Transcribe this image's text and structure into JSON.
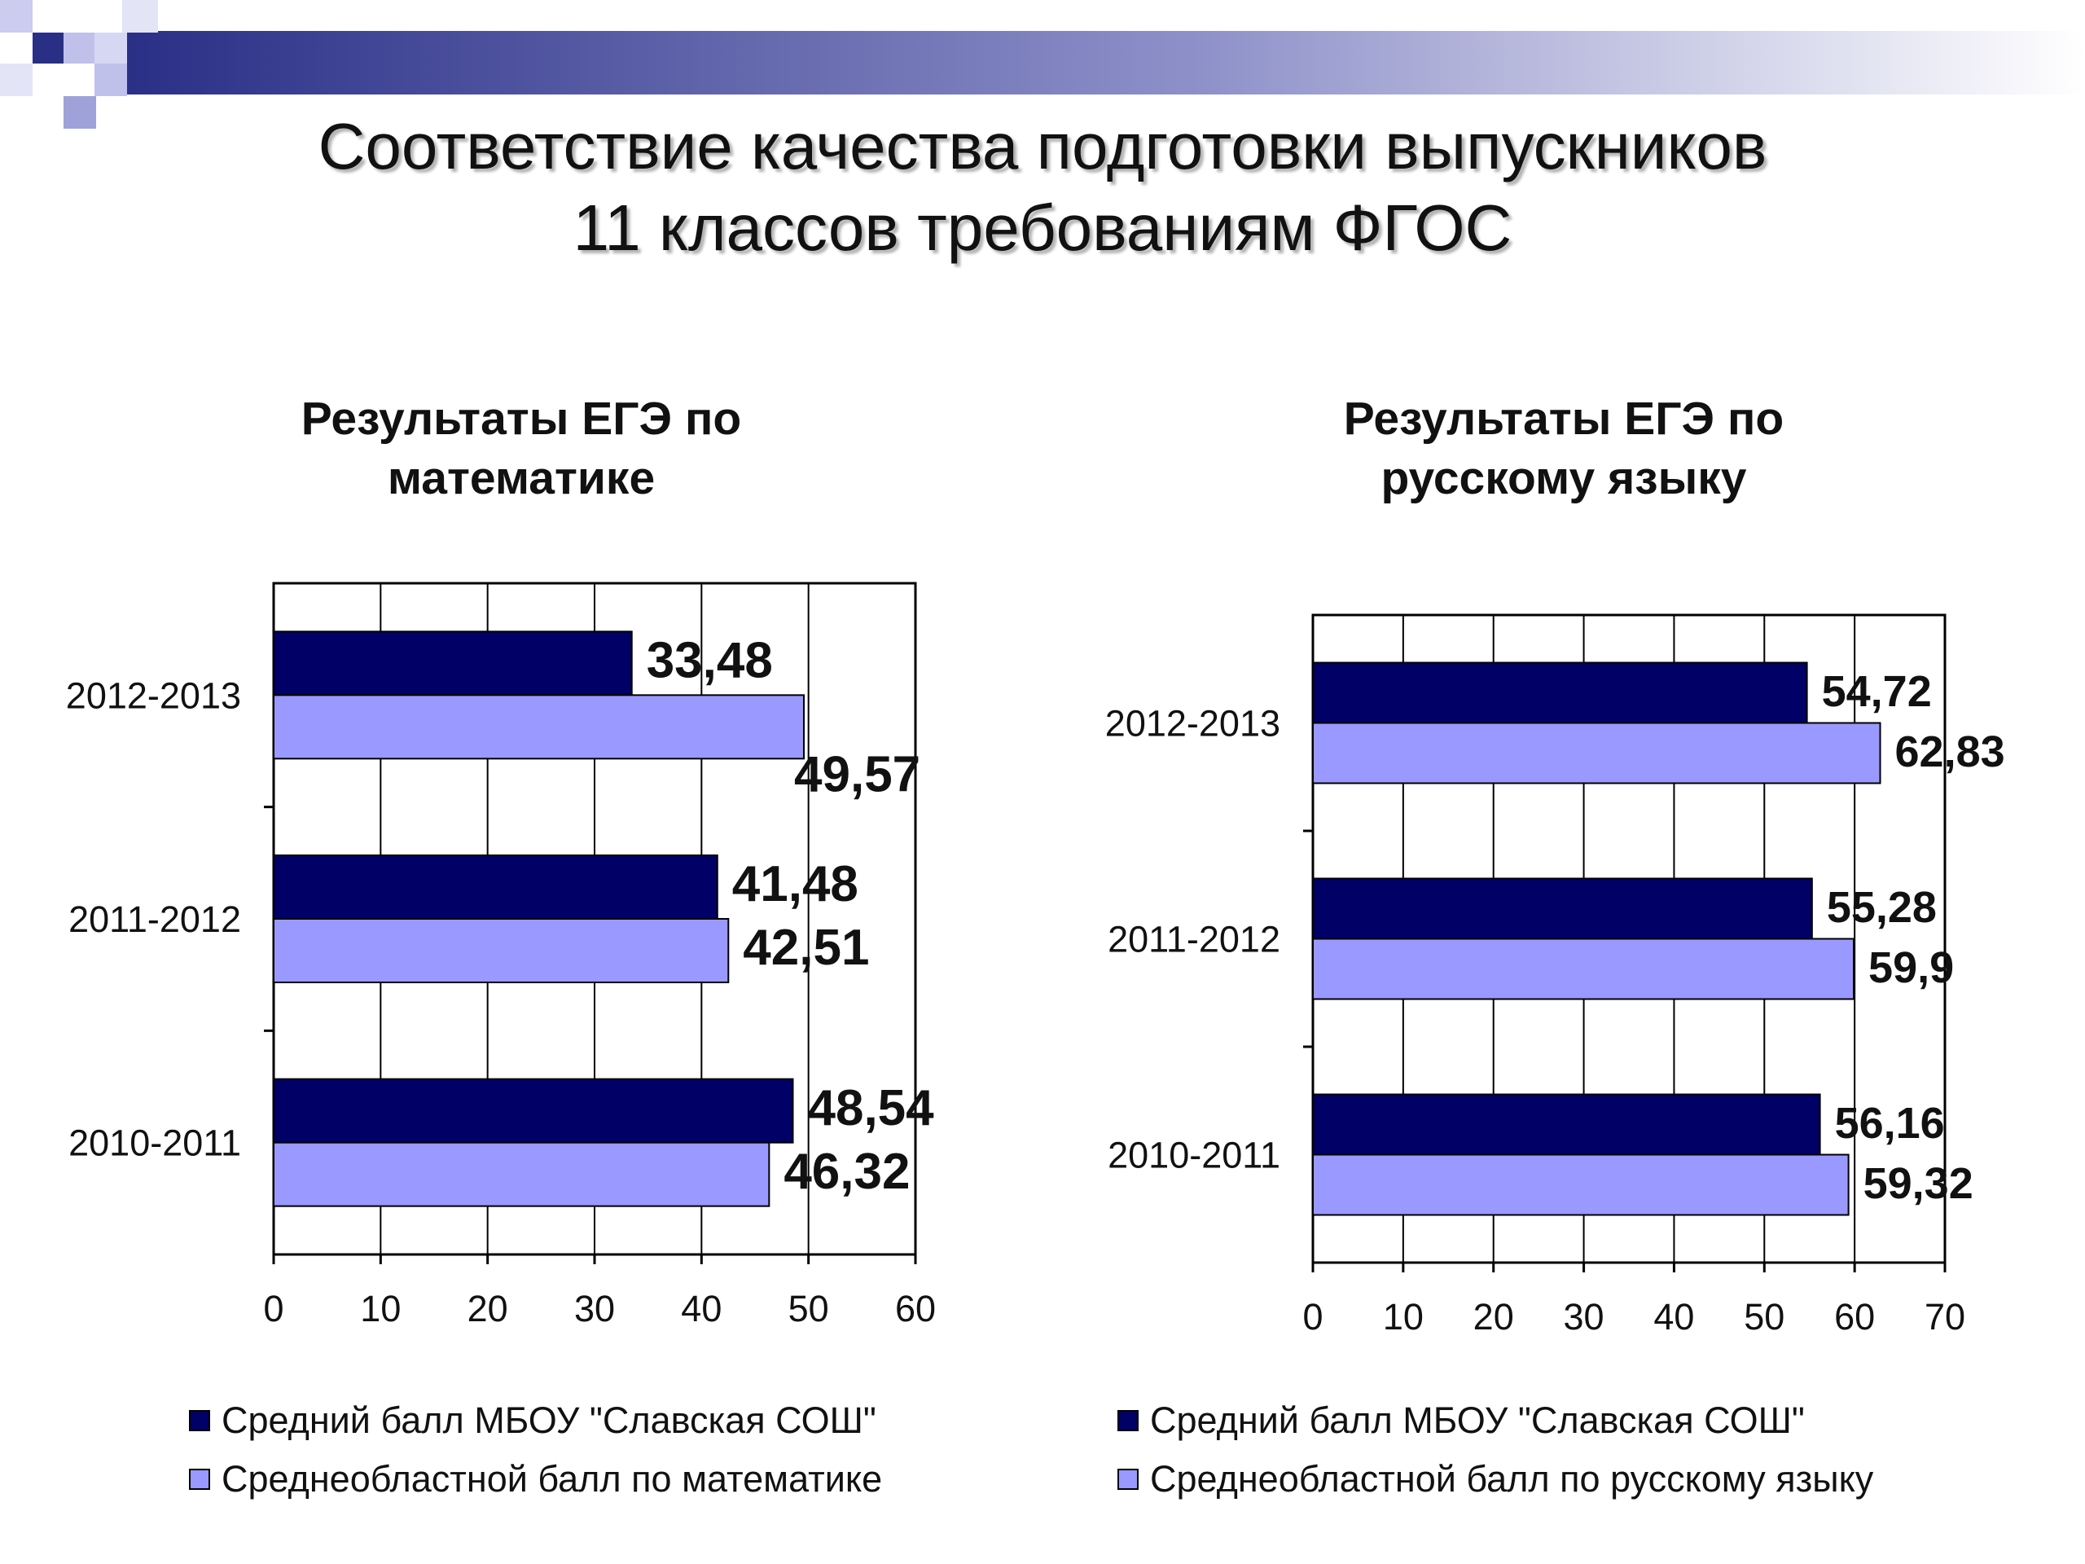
{
  "slide": {
    "title_line1": "Соответствие качества подготовки выпускников",
    "title_line2": "11 классов требованиям ФГОС"
  },
  "colors": {
    "series_school": "#000066",
    "series_region": "#9999ff",
    "banner_dark": "#2a2f86",
    "banner_light": "#c9cbee"
  },
  "chart_data": [
    {
      "type": "bar",
      "orientation": "horizontal",
      "title": "Результаты ЕГЭ по математике",
      "title_lines": [
        "Результаты ЕГЭ по",
        "математике"
      ],
      "categories": [
        "2012-2013",
        "2011-2012",
        "2010-2011"
      ],
      "series": [
        {
          "name": "Средний балл МБОУ \"Славская СОШ\"",
          "values": [
            33.48,
            41.48,
            48.54
          ],
          "labels": [
            "33,48",
            "41,48",
            "48,54"
          ]
        },
        {
          "name": "Среднеобластной балл по математике",
          "values": [
            49.57,
            42.51,
            46.32
          ],
          "labels": [
            "49,57",
            "42,51",
            "46,32"
          ]
        }
      ],
      "xlim": [
        0,
        60
      ],
      "xticks": [
        "0",
        "10",
        "20",
        "30",
        "40",
        "50",
        "60"
      ],
      "grid": true,
      "legend": "bottom"
    },
    {
      "type": "bar",
      "orientation": "horizontal",
      "title": "Результаты ЕГЭ по русскому языку",
      "title_lines": [
        "Результаты ЕГЭ по",
        "русскому языку"
      ],
      "categories": [
        "2012-2013",
        "2011-2012",
        "2010-2011"
      ],
      "series": [
        {
          "name": "Средний балл МБОУ \"Славская СОШ\"",
          "values": [
            54.72,
            55.28,
            56.16
          ],
          "labels": [
            "54,72",
            "55,28",
            "56,16"
          ]
        },
        {
          "name": "Среднеобластной балл по русскому языку",
          "values": [
            62.83,
            59.9,
            59.32
          ],
          "labels": [
            "62,83",
            "59,9",
            "59,32"
          ]
        }
      ],
      "xlim": [
        0,
        70
      ],
      "xticks": [
        "0",
        "10",
        "20",
        "30",
        "40",
        "50",
        "60",
        "70"
      ],
      "grid": true,
      "legend": "bottom"
    }
  ]
}
